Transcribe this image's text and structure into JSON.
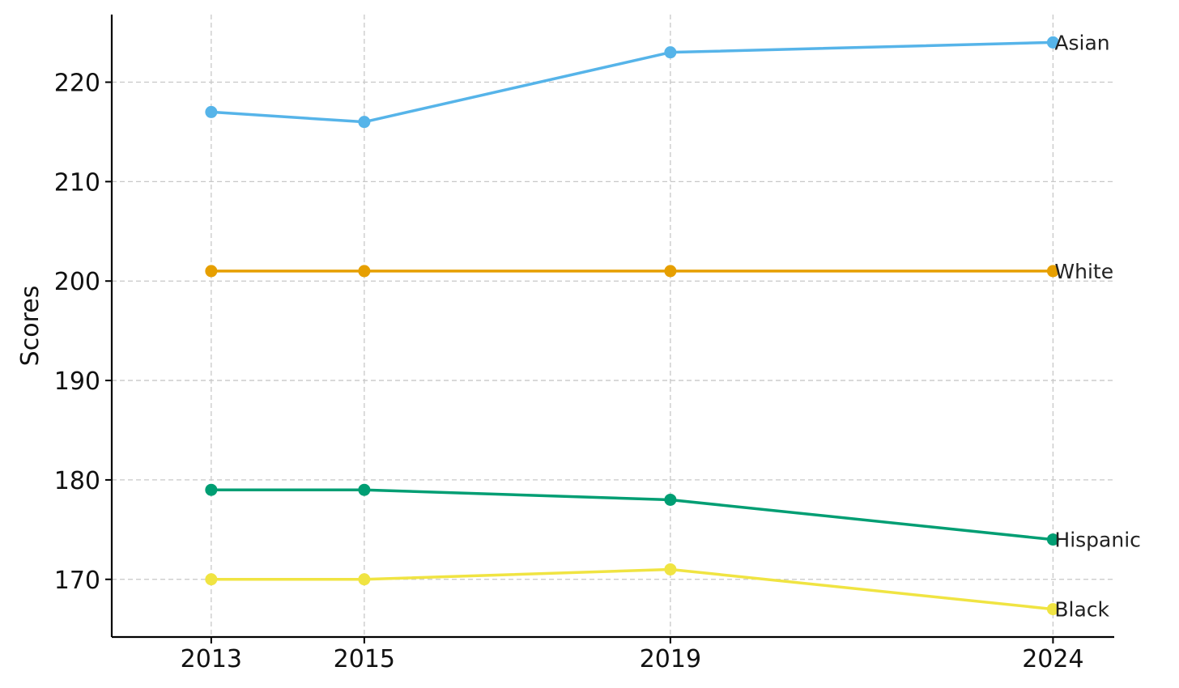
{
  "chart_data": {
    "type": "line",
    "title": "",
    "xlabel": "",
    "ylabel": "Scores",
    "x": [
      2013,
      2015,
      2019,
      2024
    ],
    "x_tick_labels": [
      "2013",
      "2015",
      "2019",
      "2024"
    ],
    "y_ticks": [
      170,
      180,
      190,
      200,
      210,
      220
    ],
    "y_tick_labels": [
      "170",
      "180",
      "190",
      "200",
      "210",
      "220"
    ],
    "xlim": [
      2011.7,
      2024.8
    ],
    "ylim": [
      164.2,
      226.8
    ],
    "grid": true,
    "legend": "none",
    "series_labels_position": "end-of-line",
    "series": [
      {
        "name": "Asian",
        "color": "#56b4e9",
        "values": [
          217,
          216,
          223,
          224
        ]
      },
      {
        "name": "White",
        "color": "#e69f00",
        "values": [
          201,
          201,
          201,
          201
        ]
      },
      {
        "name": "Hispanic",
        "color": "#009e73",
        "values": [
          179,
          179,
          178,
          174
        ]
      },
      {
        "name": "Black",
        "color": "#f0e442",
        "values": [
          170,
          170,
          171,
          167
        ]
      }
    ]
  }
}
